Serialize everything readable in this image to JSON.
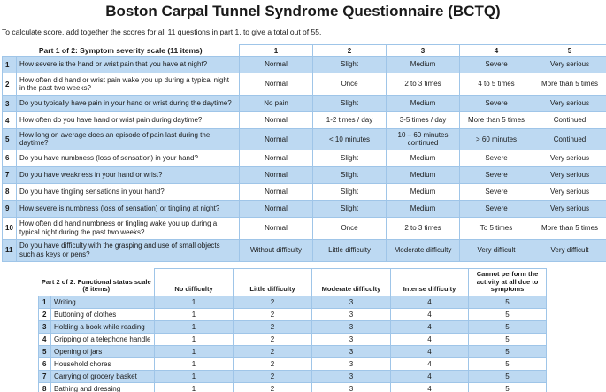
{
  "page": {
    "title": "Boston Carpal Tunnel Syndrome Questionnaire (BCTQ)",
    "subtitle": "To calculate score, add together the scores for all 11 questions in part 1, to give a total out of 55."
  },
  "colors": {
    "row_highlight_blue": "#BDD9F2",
    "table_border_blue": "#9FC5E8",
    "text": "#1A1A1A",
    "background": "#FFFFFF"
  },
  "part1": {
    "label": "Part 1 of 2: Symptom severity scale (11 items)",
    "columns": [
      "1",
      "2",
      "3",
      "4",
      "5"
    ],
    "rows": [
      {
        "num": "1",
        "question": "How severe is the hand or wrist pain that you have at night?",
        "options": [
          "Normal",
          "Slight",
          "Medium",
          "Severe",
          "Very serious"
        ]
      },
      {
        "num": "2",
        "question": "How often did hand or wrist pain wake you up during a typical night in the past two weeks?",
        "options": [
          "Normal",
          "Once",
          "2 to 3 times",
          "4 to 5 times",
          "More than 5 times"
        ]
      },
      {
        "num": "3",
        "question": "Do you typically have pain in your hand or wrist during the daytime?",
        "options": [
          "No pain",
          "Slight",
          "Medium",
          "Severe",
          "Very serious"
        ]
      },
      {
        "num": "4",
        "question": "How often do you have hand or wrist pain during daytime?",
        "options": [
          "Normal",
          "1-2 times / day",
          "3-5 times / day",
          "More than 5 times",
          "Continued"
        ]
      },
      {
        "num": "5",
        "question": "How long on average does an episode of pain last during the daytime?",
        "options": [
          "Normal",
          "< 10 minutes",
          "10 – 60 minutes continued",
          "> 60 minutes",
          "Continued"
        ]
      },
      {
        "num": "6",
        "question": "Do you have numbness (loss of sensation) in your hand?",
        "options": [
          "Normal",
          "Slight",
          "Medium",
          "Severe",
          "Very serious"
        ]
      },
      {
        "num": "7",
        "question": "Do you have weakness in your hand or wrist?",
        "options": [
          "Normal",
          "Slight",
          "Medium",
          "Severe",
          "Very serious"
        ]
      },
      {
        "num": "8",
        "question": "Do you have tingling sensations in your hand?",
        "options": [
          "Normal",
          "Slight",
          "Medium",
          "Severe",
          "Very serious"
        ]
      },
      {
        "num": "9",
        "question": "How severe is numbness (loss of sensation) or tingling at night?",
        "options": [
          "Normal",
          "Slight",
          "Medium",
          "Severe",
          "Very serious"
        ]
      },
      {
        "num": "10",
        "question": "How often did hand numbness or tingling wake you up during a typical night during the past two weeks?",
        "options": [
          "Normal",
          "Once",
          "2 to 3 times",
          "To 5 times",
          "More than 5 times"
        ]
      },
      {
        "num": "11",
        "question": "Do you have difficulty with the grasping and use of small objects such as keys or pens?",
        "options": [
          "Without difficulty",
          "Little difficulty",
          "Moderate difficulty",
          "Very difficult",
          "Very difficult"
        ]
      }
    ]
  },
  "part2": {
    "label": "Part 2 of 2: Functional status scale (8 items)",
    "columns": [
      "No difficulty",
      "Little difficulty",
      "Moderate difficulty",
      "Intense difficulty",
      "Cannot perform the activity at all due to symptoms"
    ],
    "rows": [
      {
        "num": "1",
        "activity": "Writing",
        "scores": [
          "1",
          "2",
          "3",
          "4",
          "5"
        ]
      },
      {
        "num": "2",
        "activity": "Buttoning of clothes",
        "scores": [
          "1",
          "2",
          "3",
          "4",
          "5"
        ]
      },
      {
        "num": "3",
        "activity": "Holding a book while reading",
        "scores": [
          "1",
          "2",
          "3",
          "4",
          "5"
        ]
      },
      {
        "num": "4",
        "activity": "Gripping of a telephone handle",
        "scores": [
          "1",
          "2",
          "3",
          "4",
          "5"
        ]
      },
      {
        "num": "5",
        "activity": "Opening of jars",
        "scores": [
          "1",
          "2",
          "3",
          "4",
          "5"
        ]
      },
      {
        "num": "6",
        "activity": "Household chores",
        "scores": [
          "1",
          "2",
          "3",
          "4",
          "5"
        ]
      },
      {
        "num": "7",
        "activity": "Carrying of grocery basket",
        "scores": [
          "1",
          "2",
          "3",
          "4",
          "5"
        ]
      },
      {
        "num": "8",
        "activity": "Bathing and dressing",
        "scores": [
          "1",
          "2",
          "3",
          "4",
          "5"
        ]
      }
    ]
  }
}
